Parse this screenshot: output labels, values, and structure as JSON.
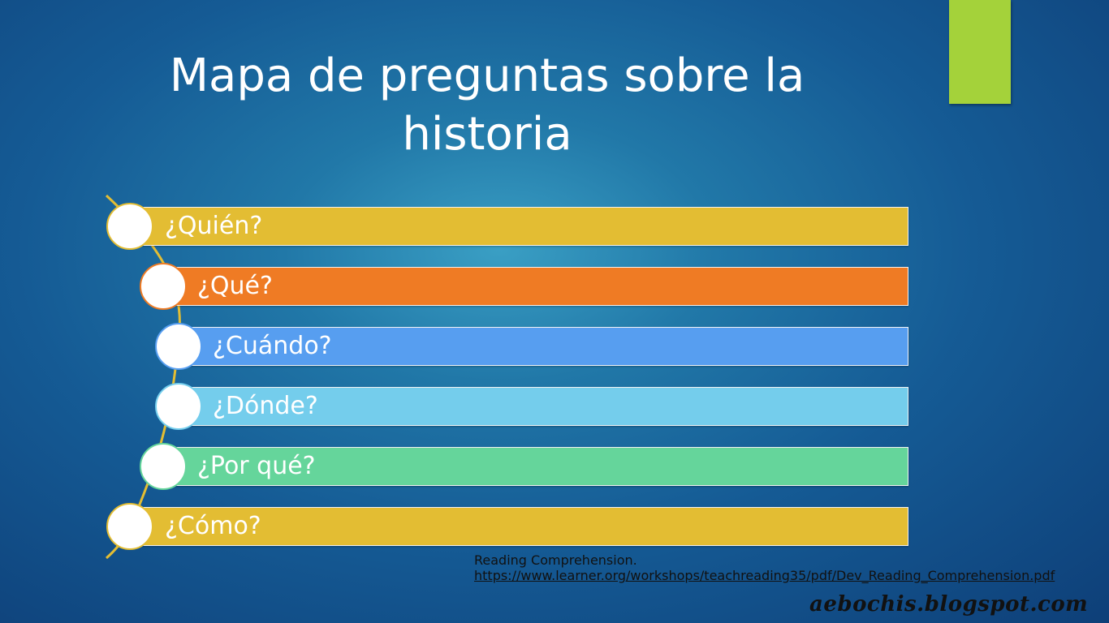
{
  "slide": {
    "title": "Mapa de preguntas sobre la historia",
    "colors": {
      "accent": "#a4d23a"
    },
    "items": [
      {
        "label": "¿Quién?",
        "color": "#e3bd33",
        "border": "#e3bd33"
      },
      {
        "label": "¿Qué?",
        "color": "#ef7b24",
        "border": "#ef7b24"
      },
      {
        "label": "¿Cuándo?",
        "color": "#579ef0",
        "border": "#579ef0"
      },
      {
        "label": "¿Dónde?",
        "color": "#74cdec",
        "border": "#74cdec"
      },
      {
        "label": "¿Por qué?",
        "color": "#65d59b",
        "border": "#65d59b"
      },
      {
        "label": "¿Cómo?",
        "color": "#e3bd33",
        "border": "#e3bd33"
      }
    ],
    "citation": {
      "line1": "Reading  Comprehension.",
      "url": "https://www.learner.org/workshops/teachreading35/pdf/Dev_Reading_Comprehension.pdf"
    },
    "watermark": "aebochis.blogspot.com"
  }
}
